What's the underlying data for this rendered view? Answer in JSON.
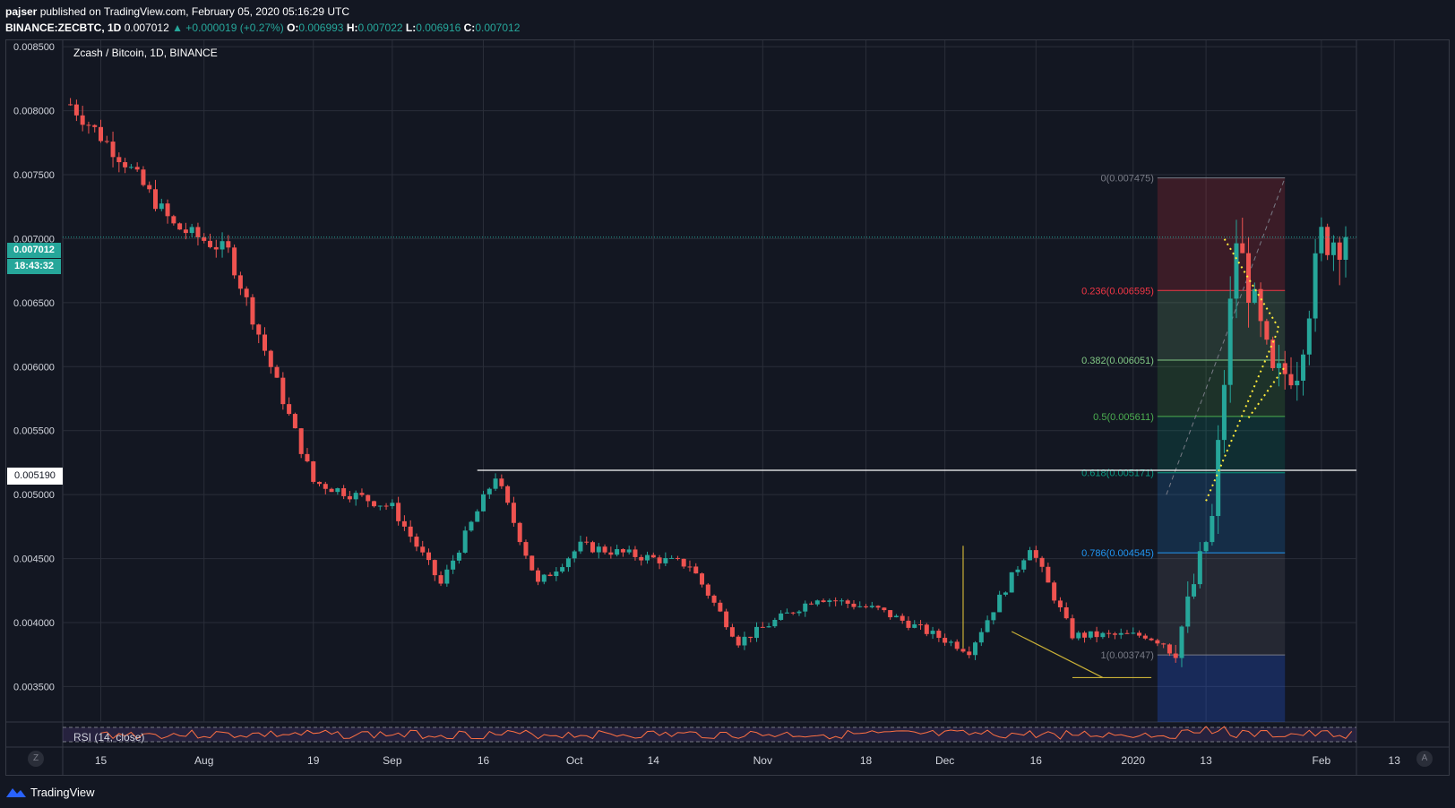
{
  "header": {
    "publisher": "pajser",
    "published_text": " published on TradingView.com, February 05, 2020 05:16:29 UTC",
    "symbol": "BINANCE:ZECBTC, 1D",
    "last": "0.007012",
    "change": "▲ +0.000019 (+0.27%)",
    "o_label": "O:",
    "o_value": "0.006993",
    "h_label": "H:",
    "h_value": "0.007022",
    "l_label": "L:",
    "l_value": "0.006916",
    "c_label": "C:",
    "c_value": "0.007012"
  },
  "chart_title": "Zcash / Bitcoin, 1D, BINANCE",
  "rsi_label": "RSI (14, close)",
  "price_tags": {
    "close": "0.007012",
    "timer": "18:43:32",
    "level": "0.005190"
  },
  "corner_buttons": {
    "left": "Z",
    "right": "A"
  },
  "footer": {
    "brand": "TradingView"
  },
  "colors": {
    "background": "#131722",
    "up": "#26a69a",
    "down": "#ef5350",
    "grid": "#2a2e39",
    "fib_line": "#ffeb3b"
  },
  "chart_data": {
    "type": "candlestick",
    "title": "Zcash / Bitcoin, 1D, BINANCE",
    "x_ticks": [
      {
        "label": "15",
        "day": 0
      },
      {
        "label": "Aug",
        "day": 17
      },
      {
        "label": "19",
        "day": 35
      },
      {
        "label": "Sep",
        "day": 48
      },
      {
        "label": "16",
        "day": 63
      },
      {
        "label": "Oct",
        "day": 78
      },
      {
        "label": "14",
        "day": 91
      },
      {
        "label": "Nov",
        "day": 109
      },
      {
        "label": "18",
        "day": 126
      },
      {
        "label": "Dec",
        "day": 139
      },
      {
        "label": "16",
        "day": 154
      },
      {
        "label": "2020",
        "day": 170
      },
      {
        "label": "13",
        "day": 182
      },
      {
        "label": "Feb",
        "day": 201
      },
      {
        "label": "13",
        "day": 213
      }
    ],
    "y_ticks": [
      "0.008500",
      "0.008000",
      "0.007500",
      "0.007000",
      "0.006500",
      "0.006000",
      "0.005500",
      "0.005000",
      "0.004500",
      "0.004000",
      "0.003500"
    ],
    "ylim": [
      0.00323,
      0.00855
    ],
    "key_prices": [
      {
        "date": "Jul 10",
        "price": 0.00805
      },
      {
        "date": "Jul 19",
        "price": 0.0076
      },
      {
        "date": "Jul 27",
        "price": 0.0071
      },
      {
        "date": "Aug 05",
        "price": 0.0069
      },
      {
        "date": "Aug 12",
        "price": 0.006
      },
      {
        "date": "Aug 19",
        "price": 0.0051
      },
      {
        "date": "Sep 01",
        "price": 0.0049
      },
      {
        "date": "Sep 09",
        "price": 0.0043
      },
      {
        "date": "Sep 18",
        "price": 0.00515
      },
      {
        "date": "Sep 25",
        "price": 0.0043
      },
      {
        "date": "Oct 02",
        "price": 0.0046
      },
      {
        "date": "Oct 20",
        "price": 0.00445
      },
      {
        "date": "Oct 28",
        "price": 0.00385
      },
      {
        "date": "Nov 10",
        "price": 0.0042
      },
      {
        "date": "Nov 20",
        "price": 0.0041
      },
      {
        "date": "Dec 05",
        "price": 0.00378
      },
      {
        "date": "Dec 15",
        "price": 0.0046
      },
      {
        "date": "Dec 22",
        "price": 0.0039
      },
      {
        "date": "Jan 03",
        "price": 0.0039
      },
      {
        "date": "Jan 08",
        "price": 0.0038
      },
      {
        "date": "Jan 14",
        "price": 0.0048
      },
      {
        "date": "Jan 18",
        "price": 0.007
      },
      {
        "date": "Jan 24",
        "price": 0.0059
      },
      {
        "date": "Jan 28",
        "price": 0.006
      },
      {
        "date": "Feb 01",
        "price": 0.007
      },
      {
        "date": "Feb 05",
        "price": 0.007012
      }
    ],
    "horizontal_level": 0.0051902,
    "fibonacci": [
      {
        "level": "0",
        "price": 0.007475,
        "label": "0(0.007475)",
        "color": "#787b86"
      },
      {
        "level": "0.236",
        "price": 0.006595,
        "label": "0.236(0.006595)",
        "color": "#f23645"
      },
      {
        "level": "0.382",
        "price": 0.006051,
        "label": "0.382(0.006051)",
        "color": "#81c784"
      },
      {
        "level": "0.5",
        "price": 0.005611,
        "label": "0.5(0.005611)",
        "color": "#4caf50"
      },
      {
        "level": "0.618",
        "price": 0.005171,
        "label": "0.618(0.005171)",
        "color": "#089981"
      },
      {
        "level": "0.786",
        "price": 0.004545,
        "label": "0.786(0.004545)",
        "color": "#2196f3"
      },
      {
        "level": "1",
        "price": 0.003747,
        "label": "1(0.003747)",
        "color": "#787b86"
      }
    ],
    "last_price": 0.007012
  }
}
